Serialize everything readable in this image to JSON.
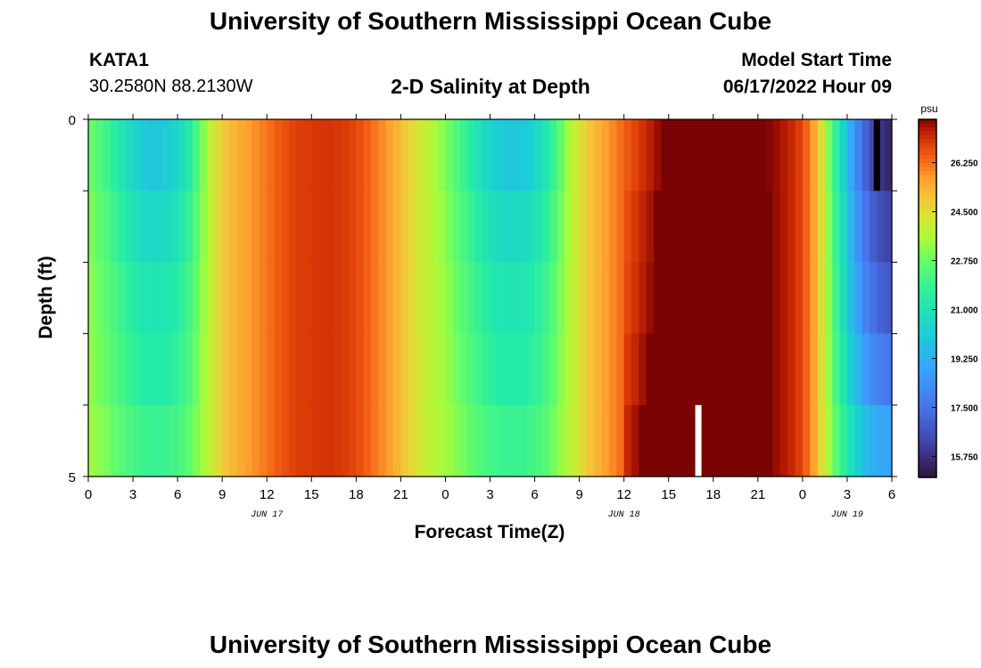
{
  "page": {
    "title_top": "University of Southern Mississippi Ocean Cube",
    "title_bottom": "University of Southern Mississippi Ocean Cube",
    "station_id": "KATA1",
    "station_coords": "30.2580N  88.2130W",
    "model_start_label": "Model Start Time",
    "model_start_value": "06/17/2022 Hour 09",
    "plot_title": "2-D Salinity at Depth"
  },
  "chart_data": {
    "type": "heatmap",
    "title": "2-D Salinity at Depth",
    "xlabel": "Forecast Time(Z)",
    "ylabel": "Depth (ft)",
    "x_hours": [
      0,
      54
    ],
    "ylim": [
      0,
      5
    ],
    "y_tick_labels": [
      "0",
      "5"
    ],
    "x_tick_labels": [
      "0",
      "3",
      "6",
      "9",
      "12",
      "15",
      "18",
      "21",
      "0",
      "3",
      "6",
      "9",
      "12",
      "15",
      "18",
      "21",
      "0",
      "3",
      "6"
    ],
    "date_labels": [
      {
        "text": "JUN 17",
        "hour": 12
      },
      {
        "text": "JUN 18",
        "hour": 36
      },
      {
        "text": "JUN 19",
        "hour": 51
      }
    ],
    "depth_rows": 5,
    "units": "psu",
    "colorbar_ticks": [
      "15.750",
      "17.500",
      "19.250",
      "21.000",
      "22.750",
      "24.500",
      "26.250"
    ],
    "colorbar_range": [
      15.0,
      27.8
    ],
    "surface_profile": {
      "hours": [
        0,
        1,
        2,
        3,
        4,
        5,
        6,
        7,
        8,
        9,
        10,
        11,
        12,
        13,
        14,
        15,
        16,
        17,
        18,
        19,
        20,
        21,
        22,
        23,
        24,
        25,
        26,
        27,
        28,
        29,
        30,
        31,
        32,
        33,
        34,
        35,
        36,
        37,
        38,
        39,
        40,
        41,
        42,
        43,
        44,
        45,
        46,
        47,
        48,
        49,
        50,
        51,
        52,
        53,
        54
      ],
      "values": [
        22.9,
        22.2,
        21.3,
        20.4,
        19.9,
        19.9,
        20.4,
        21.6,
        23.6,
        24.9,
        25.4,
        25.8,
        26.2,
        26.6,
        26.9,
        27.0,
        27.1,
        27.0,
        26.8,
        26.3,
        25.8,
        25.2,
        24.4,
        23.8,
        23.0,
        22.1,
        21.1,
        20.3,
        19.9,
        19.9,
        20.3,
        21.4,
        23.1,
        24.4,
        25.2,
        25.8,
        26.4,
        27.0,
        27.5,
        28.0,
        28.2,
        28.3,
        28.3,
        28.2,
        28.1,
        27.9,
        27.7,
        27.4,
        26.8,
        25.2,
        22.3,
        19.6,
        17.4,
        16.0,
        15.4
      ]
    },
    "depth_offsets_first_day": [
      0,
      0.6,
      1.1,
      1.4,
      1.9
    ],
    "depth_offsets_second_day": [
      0,
      0.2,
      0.3,
      0.5,
      0.8
    ],
    "deep_low_adjust": [
      0,
      0.3,
      0.7,
      1.1,
      1.8
    ],
    "markers": [
      {
        "hour": 53,
        "row": 0,
        "color": "#000000"
      },
      {
        "hour": 41,
        "row": 4,
        "color": "#ffffff"
      }
    ]
  },
  "colors": {
    "background": "#ffffff",
    "axis": "#000000"
  }
}
